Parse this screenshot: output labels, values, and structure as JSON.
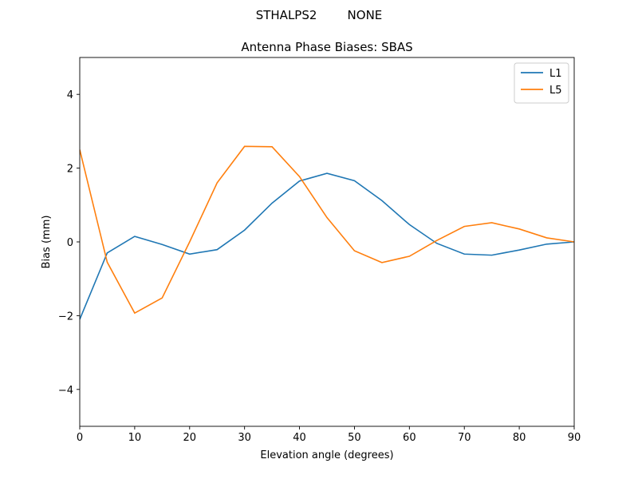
{
  "figure": {
    "suptitle": "STHALPS2        NONE"
  },
  "chart_data": {
    "type": "line",
    "title": "Antenna Phase Biases: SBAS",
    "xlabel": "Elevation angle (degrees)",
    "ylabel": "Bias (mm)",
    "xlim": [
      0,
      90
    ],
    "ylim": [
      -5,
      5
    ],
    "xticks": [
      0,
      10,
      20,
      30,
      40,
      50,
      60,
      70,
      80,
      90
    ],
    "yticks": [
      -4,
      -2,
      0,
      2,
      4
    ],
    "ytick_labels": [
      "−4",
      "−2",
      "0",
      "2",
      "4"
    ],
    "grid": false,
    "legend": "top-right",
    "x": [
      0,
      5,
      10,
      15,
      20,
      25,
      30,
      35,
      40,
      45,
      50,
      55,
      60,
      65,
      70,
      75,
      80,
      85,
      90
    ],
    "series": [
      {
        "name": "L1",
        "color": "#1f77b4",
        "values": [
          -2.1,
          -0.3,
          0.15,
          -0.07,
          -0.33,
          -0.21,
          0.32,
          1.05,
          1.65,
          1.86,
          1.66,
          1.12,
          0.47,
          -0.04,
          -0.33,
          -0.36,
          -0.22,
          -0.06,
          0.0
        ]
      },
      {
        "name": "L5",
        "color": "#ff7f0e",
        "values": [
          2.5,
          -0.55,
          -1.93,
          -1.52,
          0.0,
          1.6,
          2.59,
          2.58,
          1.77,
          0.66,
          -0.24,
          -0.56,
          -0.39,
          0.04,
          0.42,
          0.52,
          0.35,
          0.11,
          0.0
        ]
      }
    ]
  }
}
